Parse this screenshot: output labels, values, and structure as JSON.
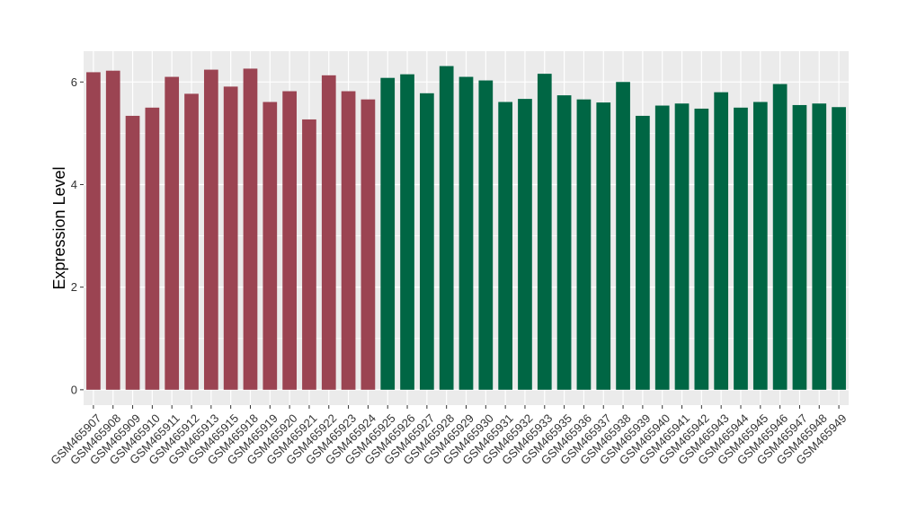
{
  "chart_data": {
    "type": "bar",
    "ylabel": "Expression Level",
    "xlabel": "",
    "ylim": [
      -0.3,
      6.6
    ],
    "yticks": [
      0,
      2,
      4,
      6
    ],
    "grid": true,
    "legend": "none",
    "colors": {
      "group1": "#9b4452",
      "group2": "#006644",
      "panel": "#ebebeb",
      "grid": "#ffffff"
    },
    "categories": [
      "GSM465907",
      "GSM465908",
      "GSM465909",
      "GSM465910",
      "GSM465911",
      "GSM465912",
      "GSM465913",
      "GSM465915",
      "GSM465918",
      "GSM465919",
      "GSM465920",
      "GSM465921",
      "GSM465922",
      "GSM465923",
      "GSM465924",
      "GSM465925",
      "GSM465926",
      "GSM465927",
      "GSM465928",
      "GSM465929",
      "GSM465930",
      "GSM465931",
      "GSM465932",
      "GSM465933",
      "GSM465935",
      "GSM465936",
      "GSM465937",
      "GSM465938",
      "GSM465939",
      "GSM465940",
      "GSM465941",
      "GSM465942",
      "GSM465943",
      "GSM465944",
      "GSM465945",
      "GSM465946",
      "GSM465947",
      "GSM465948",
      "GSM465949"
    ],
    "values": [
      6.19,
      6.22,
      5.34,
      5.5,
      6.1,
      5.77,
      6.24,
      5.91,
      6.26,
      5.61,
      5.82,
      5.27,
      6.13,
      5.82,
      5.66,
      6.08,
      6.15,
      5.78,
      6.31,
      6.1,
      6.03,
      5.61,
      5.67,
      6.16,
      5.74,
      5.66,
      5.6,
      6.0,
      5.34,
      5.54,
      5.58,
      5.48,
      5.8,
      5.5,
      5.61,
      5.96,
      5.55,
      5.58,
      5.51
    ],
    "groups": [
      1,
      1,
      1,
      1,
      1,
      1,
      1,
      1,
      1,
      1,
      1,
      1,
      1,
      1,
      1,
      2,
      2,
      2,
      2,
      2,
      2,
      2,
      2,
      2,
      2,
      2,
      2,
      2,
      2,
      2,
      2,
      2,
      2,
      2,
      2,
      2,
      2,
      2,
      2
    ]
  }
}
